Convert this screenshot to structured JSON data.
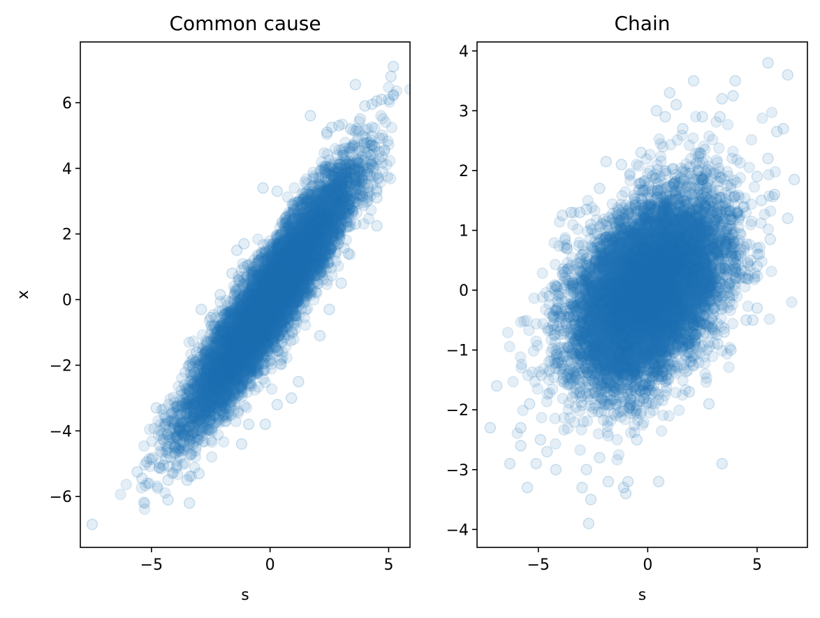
{
  "chart_data": [
    {
      "type": "scatter",
      "title": "Common cause",
      "xlabel": "s",
      "ylabel": "x",
      "xlim": [
        -8.0,
        5.9
      ],
      "ylim": [
        -7.55,
        7.85
      ],
      "xticks": [
        -5,
        0,
        5
      ],
      "yticks": [
        -6,
        -4,
        -2,
        0,
        2,
        4,
        6
      ],
      "grid": false,
      "marker_color": "#1f77b4",
      "marker_alpha": 0.12,
      "cloud": {
        "n": 9000,
        "x_mean": 0.0,
        "x_sd": 1.7,
        "slope": 1.0,
        "residual_sd": 0.72
      },
      "outliers": [
        [
          -7.5,
          -6.85
        ],
        [
          -3.4,
          -6.2
        ],
        [
          -4.3,
          -6.1
        ],
        [
          -5.4,
          -5.45
        ],
        [
          -5.6,
          -5.25
        ],
        [
          -5.2,
          -4.95
        ],
        [
          -4.5,
          -5.05
        ],
        [
          -4.3,
          -5.5
        ],
        [
          -3.5,
          -5.5
        ],
        [
          -3.0,
          -5.3
        ],
        [
          -4.8,
          -3.3
        ],
        [
          -4.4,
          -3.8
        ],
        [
          -4.3,
          -4.5
        ],
        [
          -4.2,
          -4.8
        ],
        [
          -3.8,
          -3.5
        ],
        [
          -3.9,
          -4.2
        ],
        [
          -3.6,
          -2.6
        ],
        [
          -3.4,
          -2.0
        ],
        [
          -3.1,
          -1.6
        ],
        [
          -2.9,
          -0.3
        ],
        [
          -2.5,
          -0.55
        ],
        [
          -2.1,
          0.15
        ],
        [
          -1.6,
          0.8
        ],
        [
          -1.4,
          1.5
        ],
        [
          -1.1,
          1.7
        ],
        [
          -0.3,
          3.4
        ],
        [
          0.3,
          3.3
        ],
        [
          -2.0,
          -3.4
        ],
        [
          -1.2,
          -4.4
        ],
        [
          -0.9,
          -3.8
        ],
        [
          -0.2,
          -3.8
        ],
        [
          0.3,
          -3.2
        ],
        [
          0.9,
          -3.0
        ],
        [
          1.2,
          -2.5
        ],
        [
          2.1,
          -1.1
        ],
        [
          2.5,
          -0.3
        ],
        [
          3.0,
          0.5
        ],
        [
          3.3,
          1.4
        ],
        [
          3.6,
          2.3
        ],
        [
          1.7,
          5.6
        ],
        [
          2.4,
          5.1
        ],
        [
          2.6,
          5.25
        ],
        [
          2.9,
          5.3
        ],
        [
          3.4,
          5.2
        ],
        [
          3.6,
          6.55
        ],
        [
          3.8,
          5.5
        ],
        [
          4.0,
          5.9
        ],
        [
          4.3,
          5.95
        ],
        [
          4.5,
          6.05
        ],
        [
          4.7,
          6.1
        ],
        [
          5.0,
          6.1
        ],
        [
          5.1,
          6.8
        ],
        [
          5.2,
          7.1
        ],
        [
          4.3,
          4.7
        ],
        [
          4.4,
          4.65
        ],
        [
          4.6,
          4.5
        ],
        [
          4.5,
          3.3
        ],
        [
          4.5,
          3.1
        ],
        [
          4.5,
          2.25
        ],
        [
          4.1,
          3.8
        ],
        [
          3.9,
          4.0
        ],
        [
          3.6,
          3.5
        ]
      ]
    },
    {
      "type": "scatter",
      "title": "Chain",
      "xlabel": "s",
      "ylabel": "",
      "xlim": [
        -7.8,
        7.3
      ],
      "ylim": [
        -4.3,
        4.15
      ],
      "xticks": [
        -5,
        0,
        5
      ],
      "yticks": [
        -4,
        -3,
        -2,
        -1,
        0,
        1,
        2,
        3,
        4
      ],
      "grid": false,
      "marker_color": "#1f77b4",
      "marker_alpha": 0.12,
      "cloud": {
        "n": 9000,
        "x_mean": 0.0,
        "x_sd": 1.7,
        "slope": 0.2,
        "residual_sd": 0.72
      },
      "outliers": [
        [
          -6.9,
          -1.6
        ],
        [
          -7.2,
          -2.3
        ],
        [
          -6.3,
          -2.9
        ],
        [
          -5.8,
          -2.3
        ],
        [
          -5.8,
          -2.6
        ],
        [
          -5.5,
          -3.3
        ],
        [
          -5.4,
          -1.9
        ],
        [
          -5.1,
          -2.9
        ],
        [
          -4.9,
          -2.5
        ],
        [
          -4.6,
          -2.7
        ],
        [
          -4.2,
          -3.0
        ],
        [
          -4.0,
          -0.4
        ],
        [
          -4.5,
          -0.1
        ],
        [
          -3.8,
          0.3
        ],
        [
          -3.7,
          0.7
        ],
        [
          -3.5,
          1.3
        ],
        [
          -3.9,
          1.25
        ],
        [
          -3.1,
          1.3
        ],
        [
          -2.8,
          1.35
        ],
        [
          -2.6,
          1.1
        ],
        [
          -2.2,
          1.7
        ],
        [
          -1.9,
          2.15
        ],
        [
          -1.2,
          2.1
        ],
        [
          -3.0,
          -3.3
        ],
        [
          -2.8,
          -3.0
        ],
        [
          -2.6,
          -3.5
        ],
        [
          -2.7,
          -3.9
        ],
        [
          -2.2,
          -2.8
        ],
        [
          -1.8,
          -3.2
        ],
        [
          -1.1,
          -3.3
        ],
        [
          -1.0,
          -3.4
        ],
        [
          -0.9,
          -3.2
        ],
        [
          -0.5,
          -2.5
        ],
        [
          0.5,
          -3.2
        ],
        [
          -0.3,
          2.3
        ],
        [
          0.4,
          3.0
        ],
        [
          0.8,
          2.9
        ],
        [
          1.0,
          3.3
        ],
        [
          1.3,
          3.1
        ],
        [
          1.6,
          2.7
        ],
        [
          2.1,
          3.5
        ],
        [
          2.5,
          2.9
        ],
        [
          3.4,
          3.2
        ],
        [
          3.3,
          2.9
        ],
        [
          3.9,
          3.25
        ],
        [
          4.0,
          3.5
        ],
        [
          5.5,
          3.8
        ],
        [
          6.4,
          3.6
        ],
        [
          6.7,
          1.85
        ],
        [
          6.2,
          2.7
        ],
        [
          5.9,
          2.65
        ],
        [
          5.8,
          1.6
        ],
        [
          5.5,
          2.2
        ],
        [
          6.4,
          1.2
        ],
        [
          5.6,
          0.85
        ],
        [
          5.0,
          1.9
        ],
        [
          5.2,
          1.5
        ],
        [
          5.1,
          0.6
        ],
        [
          5.0,
          0.4
        ],
        [
          4.8,
          -0.5
        ],
        [
          5.0,
          -0.3
        ],
        [
          4.5,
          -0.5
        ],
        [
          4.7,
          0.5
        ],
        [
          2.8,
          -1.9
        ],
        [
          1.9,
          -1.7
        ],
        [
          3.4,
          -2.9
        ],
        [
          3.8,
          -1.0
        ],
        [
          3.5,
          -0.7
        ],
        [
          3.2,
          -0.9
        ]
      ]
    }
  ]
}
